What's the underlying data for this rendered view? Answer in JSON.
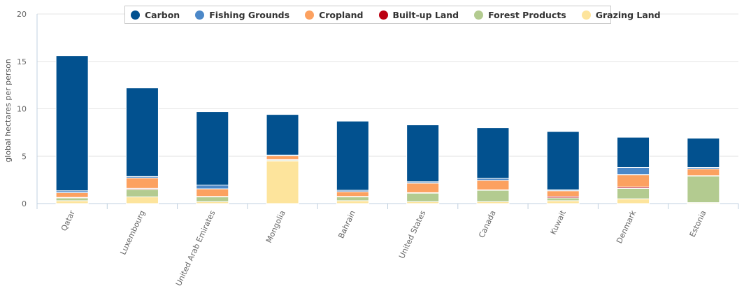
{
  "chart_data": {
    "type": "bar",
    "stacked": true,
    "ylabel": "global hectares per person",
    "ylim": [
      0,
      20
    ],
    "yticks": [
      0,
      5,
      10,
      15,
      20
    ],
    "grid": true,
    "legend_position": "top-center",
    "categories": [
      "Qatar",
      "Luxembourg",
      "United Arab Emirates",
      "Mongolia",
      "Bahrain",
      "United States",
      "Canada",
      "Kuwait",
      "Denmark",
      "Estonia"
    ],
    "series": [
      {
        "name": "Grazing Land",
        "color": "#fde49c",
        "values": [
          0.3,
          0.7,
          0.2,
          4.5,
          0.3,
          0.2,
          0.2,
          0.3,
          0.5,
          0.1
        ]
      },
      {
        "name": "Forest Products",
        "color": "#b3cb90",
        "values": [
          0.3,
          0.8,
          0.5,
          0.1,
          0.4,
          0.9,
          1.2,
          0.3,
          1.1,
          2.8
        ]
      },
      {
        "name": "Built-up Land",
        "color": "#bb0011",
        "values": [
          0.05,
          0.1,
          0.05,
          0.05,
          0.05,
          0.05,
          0.05,
          0.15,
          0.15,
          0.05
        ]
      },
      {
        "name": "Cropland",
        "color": "#fca160",
        "values": [
          0.5,
          1.1,
          0.8,
          0.4,
          0.5,
          1.0,
          1.0,
          0.6,
          1.3,
          0.7
        ]
      },
      {
        "name": "Fishing Grounds",
        "color": "#4c88c8",
        "values": [
          0.2,
          0.15,
          0.4,
          0.05,
          0.15,
          0.15,
          0.2,
          0.1,
          0.75,
          0.15
        ]
      },
      {
        "name": "Carbon",
        "color": "#02518f",
        "values": [
          14.25,
          9.35,
          7.75,
          4.3,
          7.3,
          6.0,
          5.35,
          6.15,
          3.2,
          3.1
        ]
      }
    ],
    "legend_order": [
      "Carbon",
      "Fishing Grounds",
      "Cropland",
      "Built-up Land",
      "Forest Products",
      "Grazing Land"
    ]
  }
}
